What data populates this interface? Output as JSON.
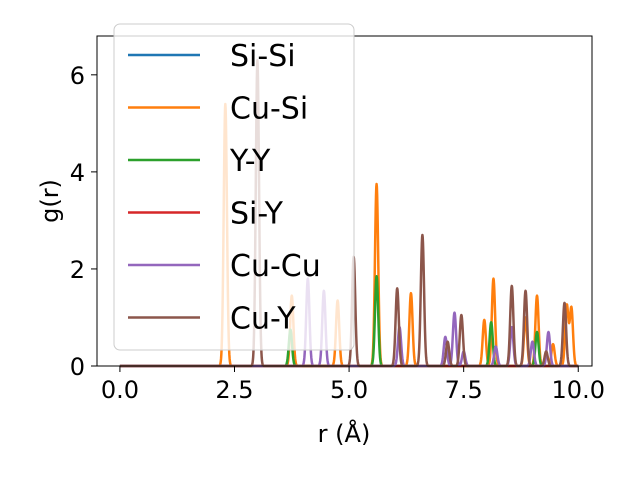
{
  "chart_data": {
    "type": "line",
    "xlabel": "r (Å)",
    "ylabel": "g(r)",
    "xlim": [
      -0.5,
      10.3
    ],
    "ylim": [
      0,
      6.8
    ],
    "xticks": [
      0.0,
      2.5,
      5.0,
      7.5,
      10.0
    ],
    "xtick_labels": [
      "0.0",
      "2.5",
      "5.0",
      "7.5",
      "10.0"
    ],
    "yticks": [
      0,
      2,
      4,
      6
    ],
    "ytick_labels": [
      "0",
      "2",
      "4",
      "6"
    ],
    "grid": false,
    "legend_position": "upper-left",
    "series": [
      {
        "name": "Si-Si",
        "color": "#1f77b4",
        "peaks": []
      },
      {
        "name": "Cu-Si",
        "color": "#ff7f0e",
        "peaks": [
          [
            2.3,
            5.4
          ],
          [
            3.75,
            1.45
          ],
          [
            4.75,
            1.35
          ],
          [
            5.6,
            3.75
          ],
          [
            6.35,
            1.5
          ],
          [
            7.95,
            0.95
          ],
          [
            8.15,
            1.8
          ],
          [
            8.85,
            1.0
          ],
          [
            9.1,
            1.45
          ],
          [
            9.45,
            0.45
          ],
          [
            9.75,
            1.25
          ],
          [
            9.85,
            1.2
          ]
        ]
      },
      {
        "name": "Y-Y",
        "color": "#2ca02c",
        "peaks": [
          [
            3.72,
            0.75
          ],
          [
            5.6,
            1.85
          ],
          [
            8.1,
            0.9
          ],
          [
            9.1,
            0.7
          ]
        ]
      },
      {
        "name": "Si-Y",
        "color": "#d62728",
        "peaks": []
      },
      {
        "name": "Cu-Cu",
        "color": "#9467bd",
        "peaks": [
          [
            4.1,
            1.8
          ],
          [
            4.45,
            1.55
          ],
          [
            6.1,
            0.8
          ],
          [
            7.1,
            0.6
          ],
          [
            7.3,
            1.1
          ],
          [
            7.5,
            0.3
          ],
          [
            8.2,
            0.4
          ],
          [
            8.55,
            0.8
          ],
          [
            9.0,
            0.5
          ],
          [
            9.35,
            0.7
          ]
        ]
      },
      {
        "name": "Cu-Y",
        "color": "#8c564b",
        "peaks": [
          [
            3.0,
            6.3
          ],
          [
            5.1,
            2.25
          ],
          [
            6.05,
            1.6
          ],
          [
            6.6,
            2.7
          ],
          [
            7.15,
            0.5
          ],
          [
            7.45,
            1.05
          ],
          [
            8.55,
            1.65
          ],
          [
            8.85,
            1.55
          ],
          [
            9.3,
            0.3
          ],
          [
            9.7,
            1.3
          ]
        ]
      }
    ]
  }
}
